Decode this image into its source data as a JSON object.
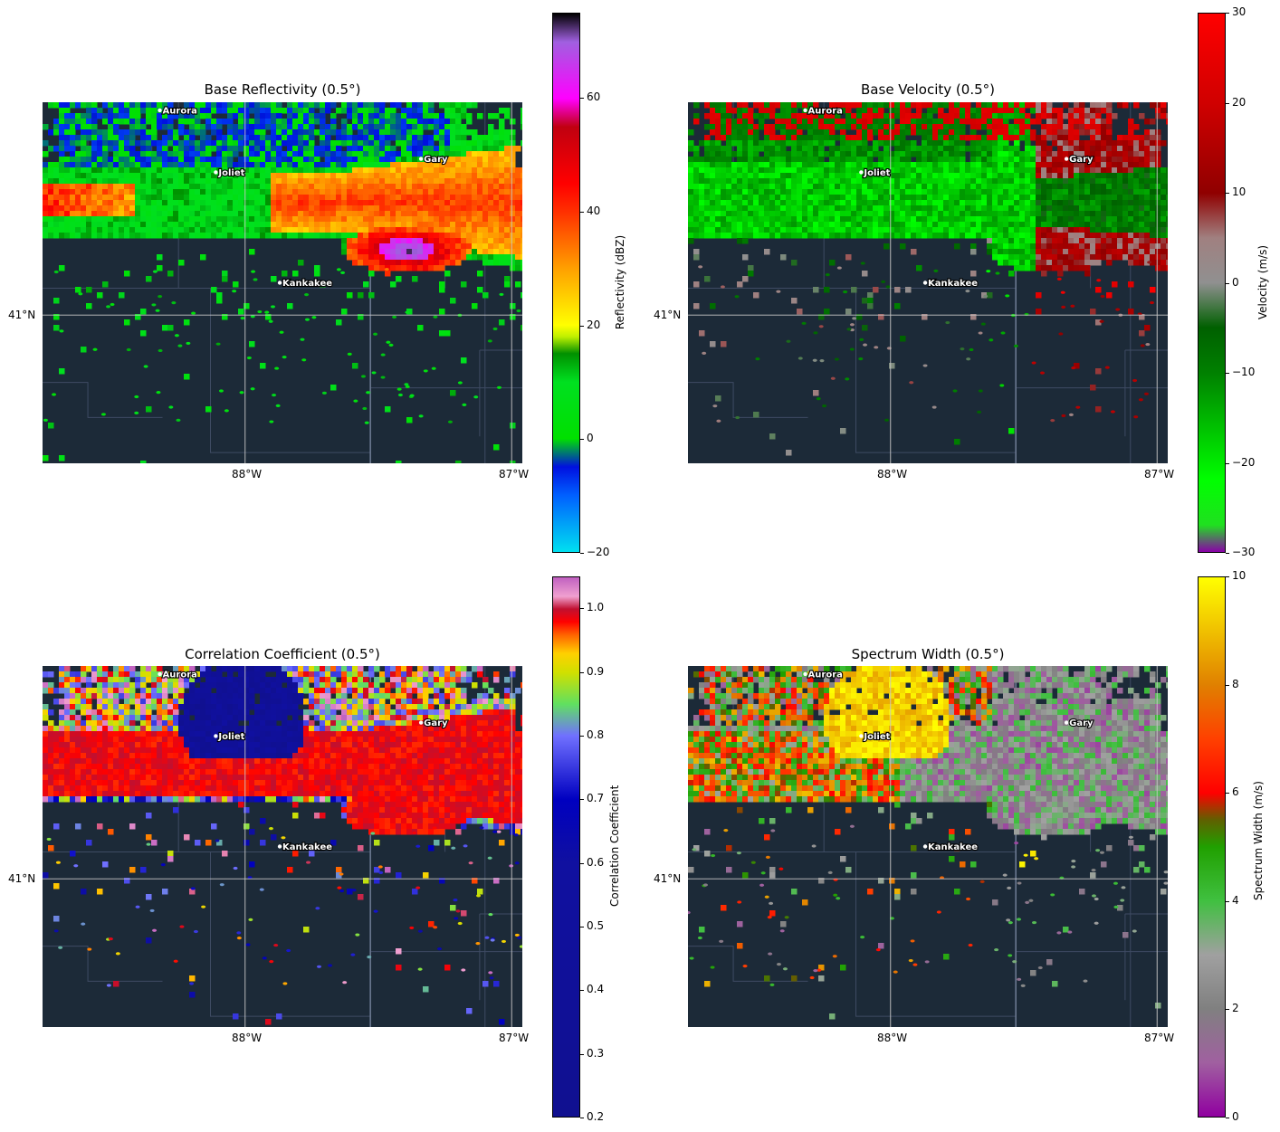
{
  "colors": {
    "map_background": "#1c2a38",
    "border_lines": "#3e4b63",
    "grid_lines": "#c8c8c8",
    "city_label": "#ffffff"
  },
  "cities": [
    {
      "name": "Aurora",
      "lon": -88.32,
      "lat": 41.76
    },
    {
      "name": "Joliet",
      "lon": -88.11,
      "lat": 41.53
    },
    {
      "name": "Gary",
      "lon": -87.34,
      "lat": 41.58
    },
    {
      "name": "Kankakee",
      "lon": -87.87,
      "lat": 41.12
    }
  ],
  "axes": {
    "lon_ticks": [
      "88°W",
      "87°W"
    ],
    "lat_ticks": [
      "41°N"
    ],
    "lon_range": [
      -88.76,
      -86.96
    ],
    "lat_range": [
      40.45,
      41.79
    ]
  },
  "panels": [
    {
      "id": "reflectivity",
      "title": "Base Reflectivity (0.5°)",
      "colorbar_label": "Reflectivity (dBZ)",
      "range": [
        -20,
        75
      ],
      "ticks": [
        -20,
        0,
        20,
        40,
        60
      ],
      "tick_labels": [
        "−20",
        "0",
        "20",
        "40",
        "60"
      ],
      "stops": [
        [
          -20,
          "#00e0f0"
        ],
        [
          -10,
          "#0060ff"
        ],
        [
          -5,
          "#0010e0"
        ],
        [
          0,
          "#00e000"
        ],
        [
          10,
          "#00e020"
        ],
        [
          15,
          "#009000"
        ],
        [
          18,
          "#c0f000"
        ],
        [
          20,
          "#ffff00"
        ],
        [
          30,
          "#ffa000"
        ],
        [
          40,
          "#ff3000"
        ],
        [
          45,
          "#ff0000"
        ],
        [
          55,
          "#c00010"
        ],
        [
          60,
          "#ff00ff"
        ],
        [
          70,
          "#a060e0"
        ],
        [
          75,
          "#000000"
        ]
      ]
    },
    {
      "id": "velocity",
      "title": "Base Velocity (0.5°)",
      "colorbar_label": "Velocity (m/s)",
      "range": [
        -30,
        30
      ],
      "ticks": [
        -30,
        -20,
        -10,
        0,
        10,
        20,
        30
      ],
      "tick_labels": [
        "−30",
        "−20",
        "−10",
        "0",
        "10",
        "20",
        "30"
      ],
      "stops": [
        [
          -30,
          "#8a00a8"
        ],
        [
          -27,
          "#20e020"
        ],
        [
          -22,
          "#00ff00"
        ],
        [
          -10,
          "#008000"
        ],
        [
          -5,
          "#006000"
        ],
        [
          0,
          "#909090"
        ],
        [
          5,
          "#a08080"
        ],
        [
          10,
          "#900000"
        ],
        [
          20,
          "#d00000"
        ],
        [
          30,
          "#ff0000"
        ]
      ]
    },
    {
      "id": "correlation",
      "title": "Correlation Coefficient (0.5°)",
      "colorbar_label": "Correlation Coefficient",
      "range": [
        0.2,
        1.05
      ],
      "ticks": [
        0.2,
        0.3,
        0.4,
        0.5,
        0.6,
        0.7,
        0.8,
        0.9,
        1.0
      ],
      "tick_labels": [
        "0.2",
        "0.3",
        "0.4",
        "0.5",
        "0.6",
        "0.7",
        "0.8",
        "0.9",
        "1.0"
      ],
      "stops": [
        [
          0.2,
          "#101090"
        ],
        [
          0.6,
          "#1010a0"
        ],
        [
          0.7,
          "#0000c0"
        ],
        [
          0.8,
          "#7070ff"
        ],
        [
          0.85,
          "#60e060"
        ],
        [
          0.9,
          "#d0e000"
        ],
        [
          0.93,
          "#ffd000"
        ],
        [
          0.96,
          "#ff6000"
        ],
        [
          0.98,
          "#ff0000"
        ],
        [
          1.0,
          "#c01030"
        ],
        [
          1.02,
          "#f0a0d0"
        ],
        [
          1.05,
          "#c060c0"
        ]
      ]
    },
    {
      "id": "spectrum",
      "title": "Spectrum Width (0.5°)",
      "colorbar_label": "Spectrum Width (m/s)",
      "range": [
        0,
        10
      ],
      "ticks": [
        0,
        2,
        4,
        6,
        8,
        10
      ],
      "tick_labels": [
        "0",
        "2",
        "4",
        "6",
        "8",
        "10"
      ],
      "stops": [
        [
          0,
          "#9000a0"
        ],
        [
          1,
          "#a060a0"
        ],
        [
          2,
          "#808080"
        ],
        [
          3,
          "#a0a0a0"
        ],
        [
          4,
          "#40c040"
        ],
        [
          5,
          "#20a000"
        ],
        [
          5.5,
          "#606000"
        ],
        [
          6,
          "#ff0000"
        ],
        [
          7,
          "#ff4000"
        ],
        [
          8,
          "#e08000"
        ],
        [
          9,
          "#f0c000"
        ],
        [
          10,
          "#ffff00"
        ]
      ]
    }
  ]
}
